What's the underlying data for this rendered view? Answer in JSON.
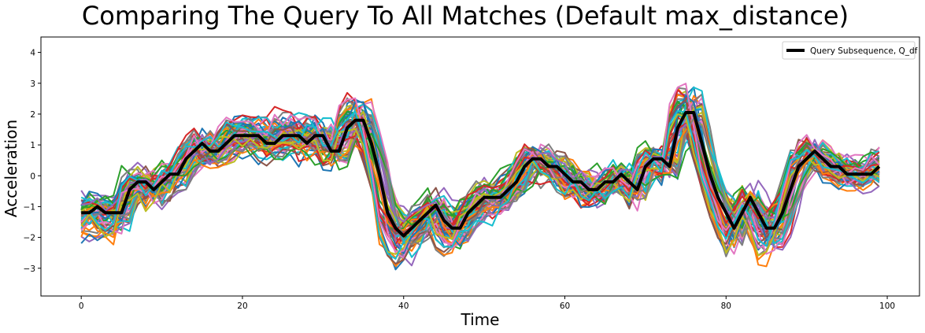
{
  "chart_data": {
    "type": "line",
    "title": "Comparing The Query To All Matches (Default max_distance)",
    "xlabel": "Time",
    "ylabel": "Acceleration",
    "xlim": [
      -5,
      104
    ],
    "ylim": [
      -3.9,
      4.5
    ],
    "xticks": [
      0,
      20,
      40,
      60,
      80,
      100
    ],
    "yticks": [
      -3,
      -2,
      -1,
      0,
      1,
      2,
      3,
      4
    ],
    "grid": false,
    "legend": {
      "position": "top-right",
      "entries": [
        "Query Subsequence, Q_df"
      ]
    },
    "palette": [
      "#1f77b4",
      "#ff7f0e",
      "#2ca02c",
      "#d62728",
      "#9467bd",
      "#8c564b",
      "#e377c2",
      "#7f7f7f",
      "#bcbd22",
      "#17becf"
    ],
    "num_match_series": 60,
    "query_series": {
      "name": "Query Subsequence, Q_df",
      "color": "#000000",
      "x": [
        0,
        1,
        2,
        3,
        4,
        5,
        6,
        7,
        8,
        9,
        10,
        11,
        12,
        13,
        14,
        15,
        16,
        17,
        18,
        19,
        20,
        21,
        22,
        23,
        24,
        25,
        26,
        27,
        28,
        29,
        30,
        31,
        32,
        33,
        34,
        35,
        36,
        37,
        38,
        39,
        40,
        41,
        42,
        43,
        44,
        45,
        46,
        47,
        48,
        49,
        50,
        51,
        52,
        53,
        54,
        55,
        56,
        57,
        58,
        59,
        60,
        61,
        62,
        63,
        64,
        65,
        66,
        67,
        68,
        69,
        70,
        71,
        72,
        73,
        74,
        75,
        76,
        77,
        78,
        79,
        80,
        81,
        82,
        83,
        84,
        85,
        86,
        87,
        88,
        89,
        90,
        91,
        92,
        93,
        94,
        95,
        96,
        97,
        98,
        99
      ],
      "values": [
        -1.2,
        -1.2,
        -1.0,
        -1.2,
        -1.2,
        -1.2,
        -0.45,
        -0.2,
        -0.2,
        -0.45,
        -0.2,
        0.05,
        0.05,
        0.55,
        0.8,
        1.05,
        0.8,
        0.8,
        1.05,
        1.3,
        1.3,
        1.3,
        1.3,
        1.05,
        1.05,
        1.3,
        1.3,
        1.3,
        1.05,
        1.3,
        1.3,
        0.8,
        0.8,
        1.55,
        1.8,
        1.8,
        1.05,
        0.05,
        -1.2,
        -1.7,
        -1.95,
        -1.7,
        -1.45,
        -1.2,
        -0.95,
        -1.45,
        -1.7,
        -1.7,
        -1.2,
        -0.95,
        -0.7,
        -0.7,
        -0.7,
        -0.45,
        -0.2,
        0.3,
        0.55,
        0.55,
        0.3,
        0.3,
        0.05,
        -0.2,
        -0.2,
        -0.45,
        -0.45,
        -0.2,
        -0.2,
        0.05,
        -0.2,
        -0.45,
        0.3,
        0.55,
        0.55,
        0.3,
        1.55,
        2.05,
        2.05,
        1.05,
        0.05,
        -0.7,
        -1.2,
        -1.7,
        -1.2,
        -0.7,
        -1.2,
        -1.7,
        -1.7,
        -1.2,
        -0.45,
        0.3,
        0.55,
        0.8,
        0.55,
        0.3,
        0.3,
        0.05,
        0.05,
        0.05,
        0.05,
        0.3
      ]
    }
  }
}
